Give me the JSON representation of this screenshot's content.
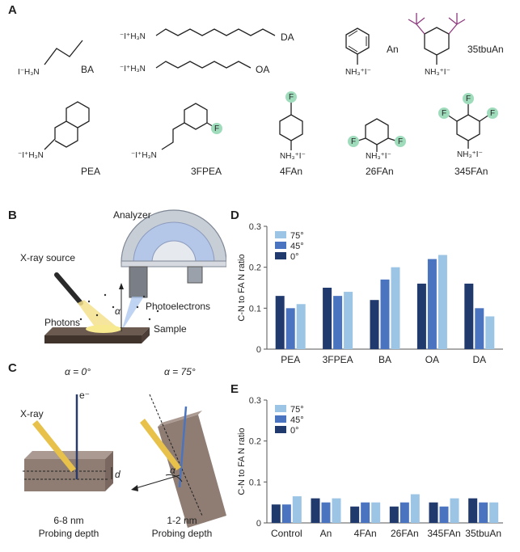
{
  "panels": {
    "a": "A",
    "b": "B",
    "c": "C",
    "d": "D",
    "e": "E"
  },
  "molecules": {
    "ba": "BA",
    "da": "DA",
    "oa": "OA",
    "an": "An",
    "tbuan": "35tbuAn",
    "pea": "PEA",
    "fpea": "3FPEA",
    "fan4": "4FAn",
    "fan26": "26FAn",
    "fan345": "345FAn"
  },
  "chem_text": {
    "ammonium_left": "I⁻H₃N",
    "ammonium_left_plus": "⁻I⁺H₃N",
    "anilinium": "NH₃⁺I⁻",
    "fluorine": "F"
  },
  "schematic_b": {
    "analyzer": "Analyzer",
    "source": "X-ray source",
    "photoelectrons": "Photoelectrons",
    "photons": "Photons",
    "sample": "Sample",
    "alpha": "α"
  },
  "schematic_c": {
    "angle_left": "α = 0°",
    "angle_right": "α = 75°",
    "xray": "X-ray",
    "electron": "e⁻",
    "d": "d",
    "alpha": "α",
    "depth_left": "6-8 nm",
    "depth_right": "1-2 nm",
    "probing": "Probing depth"
  },
  "colors": {
    "c75": "#9cc4e4",
    "c45": "#4a74bf",
    "c0": "#213a6e",
    "fluorine_fill": "#9fdcbc",
    "tbu": "#8e3a7e"
  },
  "chart_data": [
    {
      "id": "D",
      "type": "bar",
      "ylabel": "C-N to FA N ratio",
      "ylim": [
        0,
        0.3
      ],
      "yticks": [
        "0",
        "0.1",
        "0.2",
        "0.3"
      ],
      "ytick_values": [
        0,
        0.1,
        0.2,
        0.3
      ],
      "categories": [
        "PEA",
        "3FPEA",
        "BA",
        "OA",
        "DA"
      ],
      "legend_position": "top-left",
      "series": [
        {
          "name": "0°",
          "color": "#213a6e",
          "values": [
            0.13,
            0.15,
            0.12,
            0.16,
            0.16
          ]
        },
        {
          "name": "45°",
          "color": "#4a74bf",
          "values": [
            0.1,
            0.13,
            0.17,
            0.22,
            0.1
          ]
        },
        {
          "name": "75°",
          "color": "#9cc4e4",
          "values": [
            0.11,
            0.14,
            0.2,
            0.23,
            0.08
          ]
        }
      ]
    },
    {
      "id": "E",
      "type": "bar",
      "ylabel": "C-N to FA N ratio",
      "ylim": [
        0,
        0.3
      ],
      "yticks": [
        "0",
        "0.1",
        "0.2",
        "0.3"
      ],
      "ytick_values": [
        0,
        0.1,
        0.2,
        0.3
      ],
      "categories": [
        "Control",
        "An",
        "4FAn",
        "26FAn",
        "345FAn",
        "35tbuAn"
      ],
      "legend_position": "top-left",
      "series": [
        {
          "name": "0°",
          "color": "#213a6e",
          "values": [
            0.045,
            0.06,
            0.04,
            0.04,
            0.05,
            0.06
          ]
        },
        {
          "name": "45°",
          "color": "#4a74bf",
          "values": [
            0.045,
            0.05,
            0.05,
            0.05,
            0.04,
            0.05
          ]
        },
        {
          "name": "75°",
          "color": "#9cc4e4",
          "values": [
            0.065,
            0.06,
            0.05,
            0.07,
            0.06,
            0.05
          ]
        }
      ]
    }
  ]
}
